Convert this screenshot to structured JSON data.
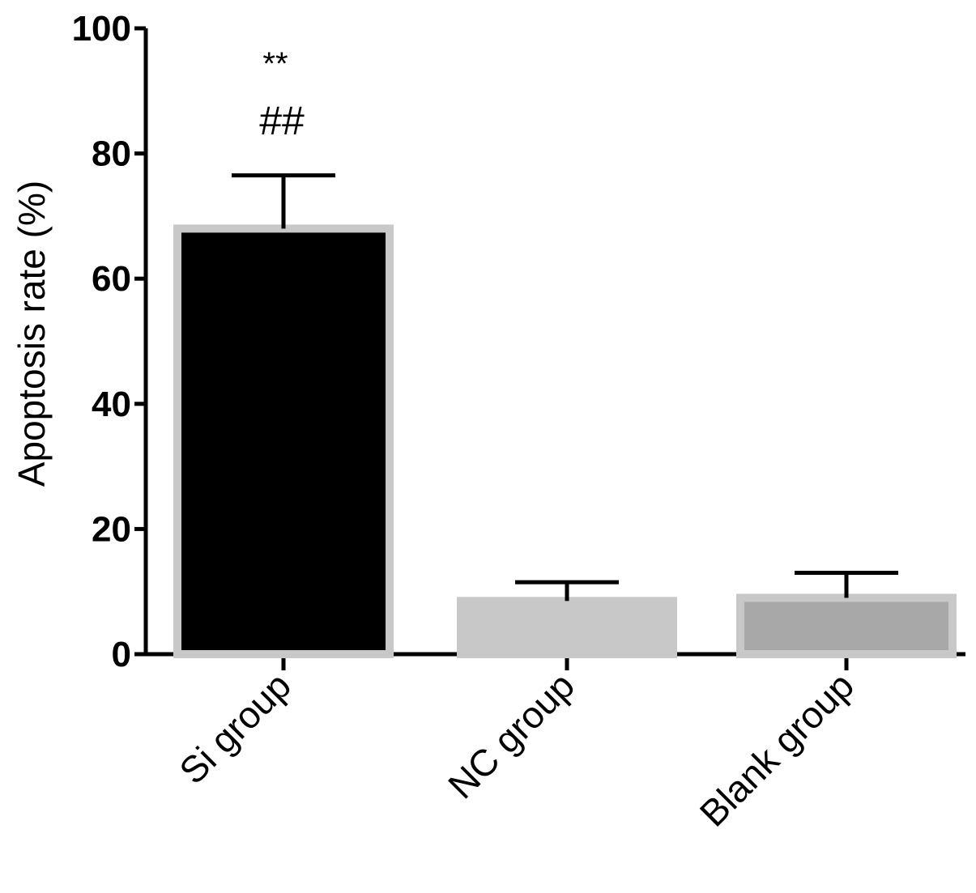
{
  "chart_data": {
    "type": "bar",
    "categories": [
      "Si group",
      "NC group",
      "Blank group"
    ],
    "values": [
      68,
      8.5,
      9
    ],
    "error_upper": [
      76.5,
      11.5,
      13
    ],
    "bar_colors": [
      "#000000",
      "#c8c8c8",
      "#a8a8a8"
    ],
    "outline_color": "#c8c8c8",
    "ylabel": "Apoptosis rate (%)",
    "xlabel": "",
    "title": "",
    "ylim": [
      0,
      100
    ],
    "yticks": [
      0,
      20,
      40,
      60,
      80,
      100
    ],
    "annotations": [
      {
        "category": "Si group",
        "lines": [
          "**",
          "##"
        ]
      }
    ],
    "grid": false,
    "legend": "none"
  }
}
